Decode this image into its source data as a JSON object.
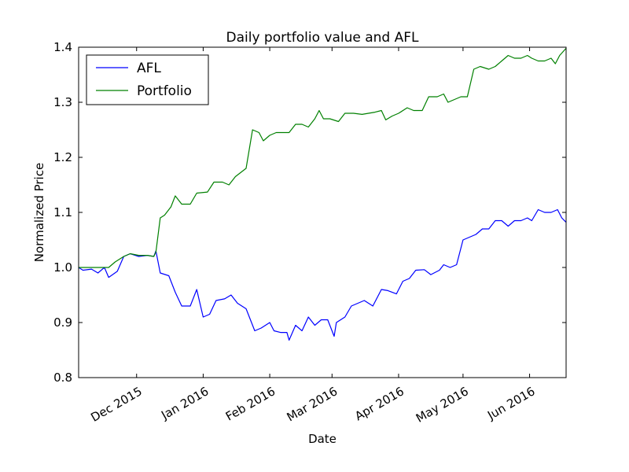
{
  "chart_data": {
    "type": "line",
    "title": "Daily portfolio value and AFL",
    "xlabel": "Date",
    "ylabel": "Normalized Price",
    "xlim": [
      "2015-11-04",
      "2016-06-18"
    ],
    "ylim": [
      0.8,
      1.4
    ],
    "y_ticks": [
      0.8,
      0.9,
      1.0,
      1.1,
      1.2,
      1.3,
      1.4
    ],
    "y_tick_labels": [
      "0.8",
      "0.9",
      "1.0",
      "1.1",
      "1.2",
      "1.3",
      "1.4"
    ],
    "x_ticks": [
      "2015-12-01",
      "2016-01-01",
      "2016-02-01",
      "2016-03-01",
      "2016-04-01",
      "2016-05-01",
      "2016-06-01"
    ],
    "x_tick_labels": [
      "Dec 2015",
      "Jan 2016",
      "Feb 2016",
      "Mar 2016",
      "Apr 2016",
      "May 2016",
      "Jun 2016"
    ],
    "grid": false,
    "legend_position": "top-left",
    "series": [
      {
        "name": "AFL",
        "color": "#0000ff",
        "points": [
          [
            "2015-11-04",
            1.0
          ],
          [
            "2015-11-06",
            0.995
          ],
          [
            "2015-11-10",
            0.997
          ],
          [
            "2015-11-13",
            0.99
          ],
          [
            "2015-11-16",
            1.0
          ],
          [
            "2015-11-18",
            0.982
          ],
          [
            "2015-11-22",
            0.993
          ],
          [
            "2015-11-25",
            1.02
          ],
          [
            "2015-11-28",
            1.025
          ],
          [
            "2015-12-02",
            1.02
          ],
          [
            "2015-12-06",
            1.022
          ],
          [
            "2015-12-09",
            1.02
          ],
          [
            "2015-12-10",
            1.03
          ],
          [
            "2015-12-12",
            0.99
          ],
          [
            "2015-12-16",
            0.985
          ],
          [
            "2015-12-19",
            0.955
          ],
          [
            "2015-12-22",
            0.93
          ],
          [
            "2015-12-26",
            0.93
          ],
          [
            "2015-12-29",
            0.96
          ],
          [
            "2016-01-01",
            0.91
          ],
          [
            "2016-01-04",
            0.915
          ],
          [
            "2016-01-07",
            0.94
          ],
          [
            "2016-01-11",
            0.943
          ],
          [
            "2016-01-14",
            0.95
          ],
          [
            "2016-01-17",
            0.935
          ],
          [
            "2016-01-21",
            0.925
          ],
          [
            "2016-01-25",
            0.885
          ],
          [
            "2016-01-28",
            0.89
          ],
          [
            "2016-02-01",
            0.9
          ],
          [
            "2016-02-03",
            0.885
          ],
          [
            "2016-02-06",
            0.882
          ],
          [
            "2016-02-09",
            0.882
          ],
          [
            "2016-02-10",
            0.868
          ],
          [
            "2016-02-13",
            0.895
          ],
          [
            "2016-02-16",
            0.885
          ],
          [
            "2016-02-19",
            0.91
          ],
          [
            "2016-02-22",
            0.895
          ],
          [
            "2016-02-25",
            0.905
          ],
          [
            "2016-02-28",
            0.905
          ],
          [
            "2016-03-02",
            0.875
          ],
          [
            "2016-03-03",
            0.9
          ],
          [
            "2016-03-07",
            0.91
          ],
          [
            "2016-03-10",
            0.93
          ],
          [
            "2016-03-13",
            0.935
          ],
          [
            "2016-03-16",
            0.94
          ],
          [
            "2016-03-20",
            0.93
          ],
          [
            "2016-03-24",
            0.96
          ],
          [
            "2016-03-27",
            0.958
          ],
          [
            "2016-03-31",
            0.952
          ],
          [
            "2016-04-03",
            0.975
          ],
          [
            "2016-04-06",
            0.98
          ],
          [
            "2016-04-09",
            0.995
          ],
          [
            "2016-04-13",
            0.996
          ],
          [
            "2016-04-16",
            0.987
          ],
          [
            "2016-04-20",
            0.995
          ],
          [
            "2016-04-22",
            1.005
          ],
          [
            "2016-04-25",
            1.0
          ],
          [
            "2016-04-28",
            1.005
          ],
          [
            "2016-05-01",
            1.05
          ],
          [
            "2016-05-04",
            1.055
          ],
          [
            "2016-05-07",
            1.06
          ],
          [
            "2016-05-10",
            1.07
          ],
          [
            "2016-05-13",
            1.07
          ],
          [
            "2016-05-16",
            1.085
          ],
          [
            "2016-05-19",
            1.085
          ],
          [
            "2016-05-22",
            1.075
          ],
          [
            "2016-05-25",
            1.085
          ],
          [
            "2016-05-28",
            1.085
          ],
          [
            "2016-05-31",
            1.09
          ],
          [
            "2016-06-02",
            1.085
          ],
          [
            "2016-06-05",
            1.105
          ],
          [
            "2016-06-08",
            1.1
          ],
          [
            "2016-06-11",
            1.1
          ],
          [
            "2016-06-14",
            1.105
          ],
          [
            "2016-06-16",
            1.09
          ],
          [
            "2016-06-18",
            1.082
          ]
        ]
      },
      {
        "name": "Portfolio",
        "color": "#008000",
        "points": [
          [
            "2015-11-04",
            1.0
          ],
          [
            "2015-11-10",
            1.0
          ],
          [
            "2015-11-14",
            1.0
          ],
          [
            "2015-11-18",
            1.0
          ],
          [
            "2015-11-21",
            1.01
          ],
          [
            "2015-11-25",
            1.02
          ],
          [
            "2015-11-28",
            1.025
          ],
          [
            "2015-12-02",
            1.022
          ],
          [
            "2015-12-06",
            1.022
          ],
          [
            "2015-12-09",
            1.02
          ],
          [
            "2015-12-10",
            1.028
          ],
          [
            "2015-12-12",
            1.09
          ],
          [
            "2015-12-14",
            1.095
          ],
          [
            "2015-12-17",
            1.11
          ],
          [
            "2015-12-19",
            1.13
          ],
          [
            "2015-12-22",
            1.115
          ],
          [
            "2015-12-26",
            1.115
          ],
          [
            "2015-12-29",
            1.135
          ],
          [
            "2016-01-03",
            1.137
          ],
          [
            "2016-01-06",
            1.155
          ],
          [
            "2016-01-10",
            1.155
          ],
          [
            "2016-01-13",
            1.15
          ],
          [
            "2016-01-16",
            1.165
          ],
          [
            "2016-01-21",
            1.18
          ],
          [
            "2016-01-24",
            1.25
          ],
          [
            "2016-01-27",
            1.245
          ],
          [
            "2016-01-29",
            1.23
          ],
          [
            "2016-02-01",
            1.24
          ],
          [
            "2016-02-04",
            1.245
          ],
          [
            "2016-02-07",
            1.245
          ],
          [
            "2016-02-10",
            1.245
          ],
          [
            "2016-02-13",
            1.26
          ],
          [
            "2016-02-16",
            1.26
          ],
          [
            "2016-02-19",
            1.255
          ],
          [
            "2016-02-22",
            1.27
          ],
          [
            "2016-02-24",
            1.285
          ],
          [
            "2016-02-26",
            1.27
          ],
          [
            "2016-02-29",
            1.27
          ],
          [
            "2016-03-04",
            1.265
          ],
          [
            "2016-03-07",
            1.28
          ],
          [
            "2016-03-11",
            1.28
          ],
          [
            "2016-03-15",
            1.278
          ],
          [
            "2016-03-18",
            1.28
          ],
          [
            "2016-03-21",
            1.282
          ],
          [
            "2016-03-24",
            1.285
          ],
          [
            "2016-03-26",
            1.268
          ],
          [
            "2016-03-29",
            1.275
          ],
          [
            "2016-04-01",
            1.28
          ],
          [
            "2016-04-05",
            1.29
          ],
          [
            "2016-04-08",
            1.285
          ],
          [
            "2016-04-12",
            1.285
          ],
          [
            "2016-04-15",
            1.31
          ],
          [
            "2016-04-19",
            1.31
          ],
          [
            "2016-04-22",
            1.315
          ],
          [
            "2016-04-24",
            1.3
          ],
          [
            "2016-04-27",
            1.305
          ],
          [
            "2016-04-30",
            1.31
          ],
          [
            "2016-05-03",
            1.31
          ],
          [
            "2016-05-06",
            1.36
          ],
          [
            "2016-05-09",
            1.365
          ],
          [
            "2016-05-13",
            1.36
          ],
          [
            "2016-05-16",
            1.365
          ],
          [
            "2016-05-19",
            1.375
          ],
          [
            "2016-05-22",
            1.385
          ],
          [
            "2016-05-25",
            1.38
          ],
          [
            "2016-05-28",
            1.38
          ],
          [
            "2016-05-31",
            1.385
          ],
          [
            "2016-06-02",
            1.38
          ],
          [
            "2016-06-05",
            1.375
          ],
          [
            "2016-06-08",
            1.375
          ],
          [
            "2016-06-11",
            1.38
          ],
          [
            "2016-06-13",
            1.37
          ],
          [
            "2016-06-15",
            1.385
          ],
          [
            "2016-06-18",
            1.398
          ]
        ]
      }
    ]
  }
}
